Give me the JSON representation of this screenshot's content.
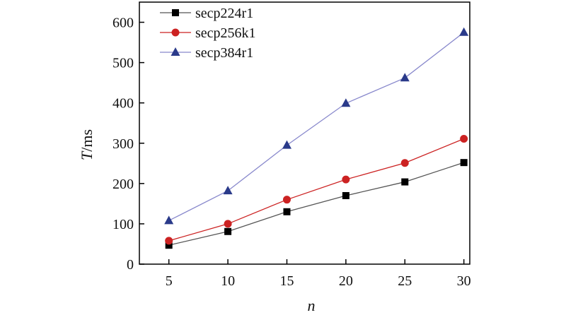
{
  "chart_data": {
    "type": "line",
    "title": "",
    "xlabel": "n",
    "ylabel_italic": "T",
    "ylabel_unit": "/ms",
    "x": [
      5,
      10,
      15,
      20,
      25,
      30
    ],
    "xlim": [
      2.5,
      30.5
    ],
    "ylim": [
      0,
      650
    ],
    "xticks": [
      5,
      10,
      15,
      20,
      25,
      30
    ],
    "yticks": [
      0,
      100,
      200,
      300,
      400,
      500,
      600
    ],
    "grid": false,
    "legend_position": "top-left",
    "series": [
      {
        "name": "secp224r1",
        "marker": "square",
        "color": "#000000",
        "line_color": "#555555",
        "values": [
          47,
          81,
          130,
          170,
          204,
          252
        ]
      },
      {
        "name": "secp256k1",
        "marker": "circle",
        "color": "#cc2222",
        "line_color": "#cc2222",
        "values": [
          58,
          100,
          160,
          210,
          251,
          311
        ]
      },
      {
        "name": "secp384r1",
        "marker": "triangle",
        "color": "#2a3a8a",
        "line_color": "#8888cc",
        "values": [
          108,
          182,
          295,
          399,
          462,
          575
        ]
      }
    ]
  }
}
